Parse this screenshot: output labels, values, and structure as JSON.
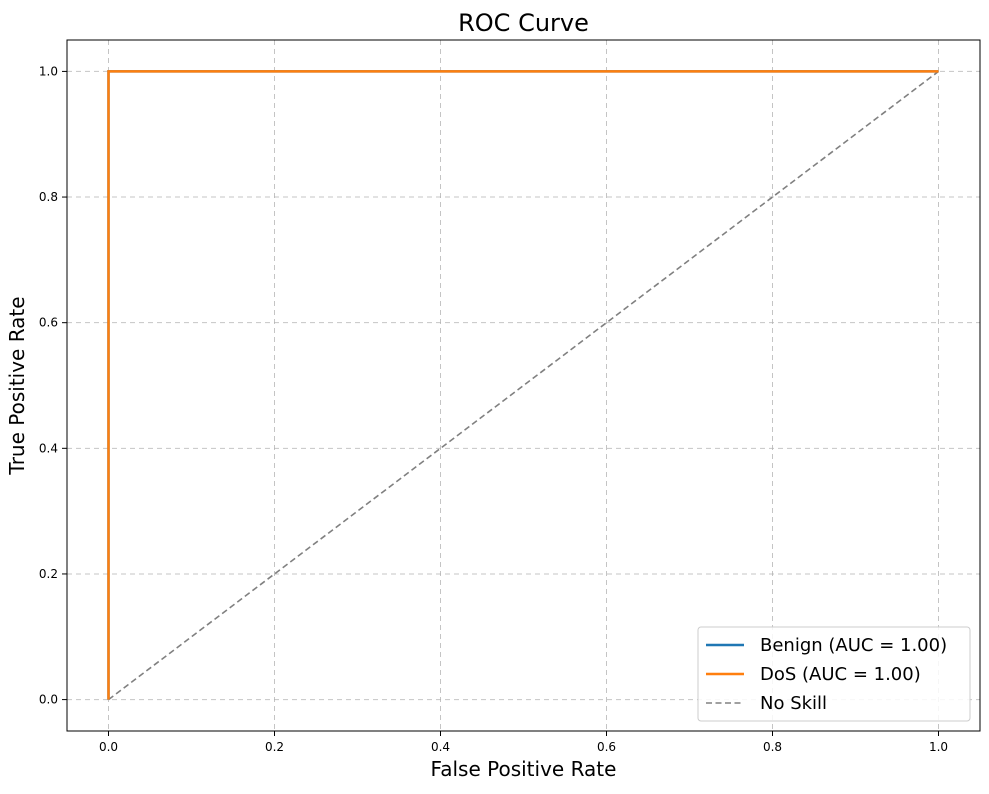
{
  "chart_data": {
    "type": "line",
    "title": "ROC Curve",
    "xlabel": "False Positive Rate",
    "ylabel": "True Positive Rate",
    "xlim": [
      -0.05,
      1.05
    ],
    "ylim": [
      -0.05,
      1.05
    ],
    "xticks": [
      0.0,
      0.2,
      0.4,
      0.6,
      0.8,
      1.0
    ],
    "yticks": [
      0.0,
      0.2,
      0.4,
      0.6,
      0.8,
      1.0
    ],
    "xtick_labels": [
      "0.0",
      "0.2",
      "0.4",
      "0.6",
      "0.8",
      "1.0"
    ],
    "ytick_labels": [
      "0.0",
      "0.2",
      "0.4",
      "0.6",
      "0.8",
      "1.0"
    ],
    "grid": true,
    "legend_position": "bottom-right",
    "series": [
      {
        "name": "Benign (AUC = 1.00)",
        "color": "#1f77b4",
        "style": "solid",
        "x": [
          0.0,
          0.0,
          1.0
        ],
        "y": [
          0.0,
          1.0,
          1.0
        ]
      },
      {
        "name": "DoS (AUC = 1.00)",
        "color": "#ff7f0e",
        "style": "solid",
        "x": [
          0.0,
          0.0,
          1.0
        ],
        "y": [
          0.0,
          1.0,
          1.0
        ]
      },
      {
        "name": "No Skill",
        "color": "#808080",
        "style": "dashed",
        "x": [
          0.0,
          1.0
        ],
        "y": [
          0.0,
          1.0
        ]
      }
    ]
  }
}
